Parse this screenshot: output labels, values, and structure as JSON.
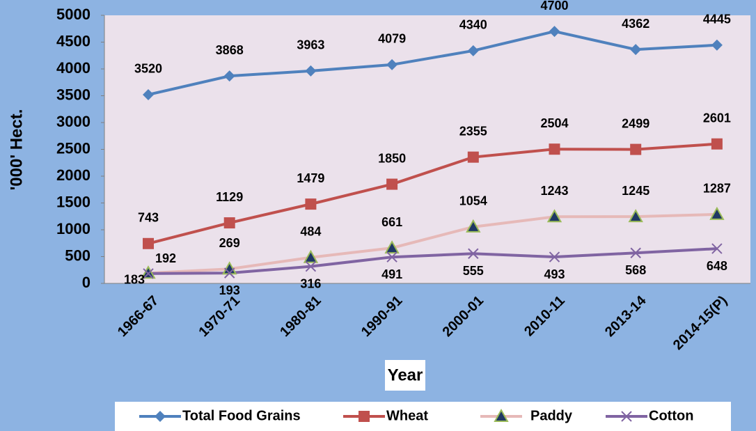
{
  "chart_data": {
    "type": "line",
    "x_label": "Year",
    "y_label": "'000' Hect.",
    "categories": [
      "1966-67",
      "1970-71",
      "1980-81",
      "1990-91",
      "2000-01",
      "2010-11",
      "2013-14",
      "2014-15(P)"
    ],
    "series": [
      {
        "name": "Total Food Grains",
        "color": "#4F81BD",
        "marker": "diamond",
        "values": [
          3520,
          3868,
          3963,
          4079,
          4340,
          4700,
          4362,
          4445
        ]
      },
      {
        "name": "Wheat",
        "color": "#C0504D",
        "marker": "square",
        "values": [
          743,
          1129,
          1479,
          1850,
          2355,
          2504,
          2499,
          2601
        ]
      },
      {
        "name": "Paddy",
        "color": "#E6B9B8",
        "marker": "triangle",
        "values": [
          192,
          269,
          484,
          661,
          1054,
          1243,
          1245,
          1287
        ]
      },
      {
        "name": "Cotton",
        "color": "#8064A2",
        "marker": "x",
        "values": [
          183,
          193,
          316,
          491,
          555,
          493,
          568,
          648
        ]
      }
    ],
    "ylim": [
      0,
      5000
    ],
    "yticks": [
      0,
      500,
      1000,
      1500,
      2000,
      2500,
      3000,
      3500,
      4000,
      4500,
      5000
    ]
  }
}
